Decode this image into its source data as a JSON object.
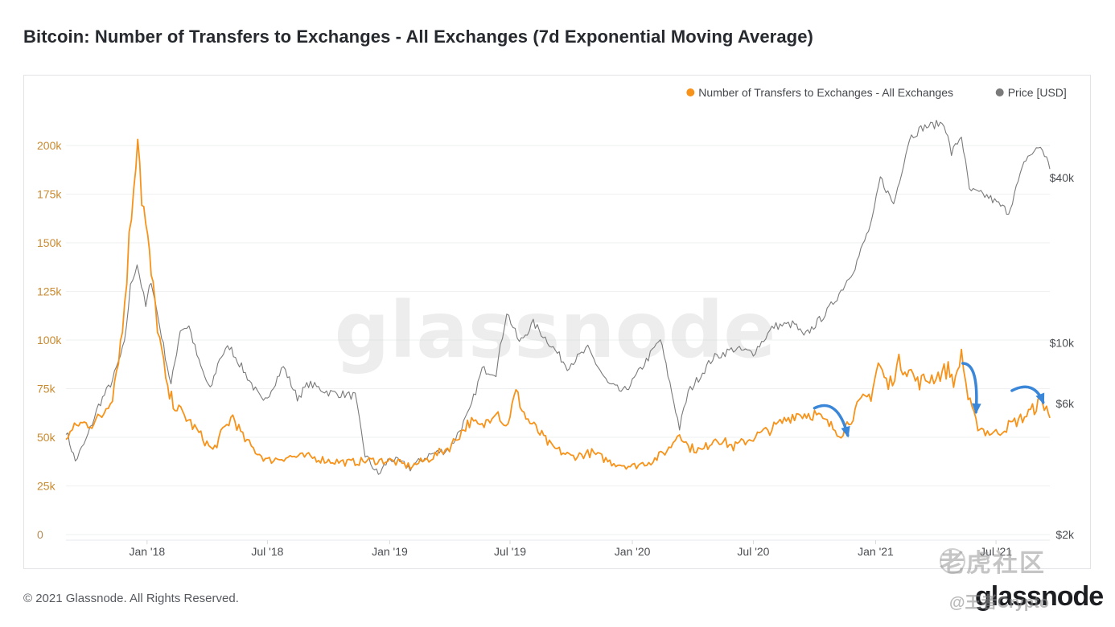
{
  "header": {
    "title": "Bitcoin: Number of Transfers to Exchanges - All Exchanges (7d Exponential Moving Average)"
  },
  "footer": {
    "copyright": "© 2021 Glassnode. All Rights Reserved.",
    "logo": "glassnode"
  },
  "overlay": {
    "tiger_watermark": "老虎社区",
    "tiger_handle": "@王者Crypto"
  },
  "chart_data": {
    "type": "line",
    "title": "Bitcoin: Number of Transfers to Exchanges - All Exchanges (7d Exponential Moving Average)",
    "watermark": "glassnode",
    "legend_position": "top-right",
    "grid": true,
    "x_range": [
      "2017-09-01",
      "2021-09-20"
    ],
    "x_ticks": [
      {
        "label": "Jan '18",
        "date": "2018-01-01"
      },
      {
        "label": "Jul '18",
        "date": "2018-07-01"
      },
      {
        "label": "Jan '19",
        "date": "2019-01-01"
      },
      {
        "label": "Jul '19",
        "date": "2019-07-01"
      },
      {
        "label": "Jan '20",
        "date": "2020-01-01"
      },
      {
        "label": "Jul '20",
        "date": "2020-07-01"
      },
      {
        "label": "Jan '21",
        "date": "2021-01-01"
      },
      {
        "label": "Jul '21",
        "date": "2021-07-01"
      }
    ],
    "y_left": {
      "scale": "linear",
      "range": [
        0,
        200000
      ],
      "ticks": [
        {
          "label": "0",
          "value": 0
        },
        {
          "label": "25k",
          "value": 25000
        },
        {
          "label": "50k",
          "value": 50000
        },
        {
          "label": "75k",
          "value": 75000
        },
        {
          "label": "100k",
          "value": 100000
        },
        {
          "label": "125k",
          "value": 125000
        },
        {
          "label": "150k",
          "value": 150000
        },
        {
          "label": "175k",
          "value": 175000
        },
        {
          "label": "200k",
          "value": 200000
        }
      ]
    },
    "y_right": {
      "scale": "log",
      "range": [
        2000,
        65000
      ],
      "ticks": [
        {
          "label": "$2k",
          "value": 2000
        },
        {
          "label": "$6k",
          "value": 6000
        },
        {
          "label": "$10k",
          "value": 10000
        },
        {
          "label": "$40k",
          "value": 40000
        }
      ]
    },
    "series": [
      {
        "name": "Number of Transfers to Exchanges - All Exchanges",
        "color": "#f7931a",
        "axis": "left",
        "points": [
          [
            "2017-09-01",
            50000
          ],
          [
            "2017-09-20",
            57000
          ],
          [
            "2017-10-10",
            57000
          ],
          [
            "2017-10-25",
            61000
          ],
          [
            "2017-11-10",
            72000
          ],
          [
            "2017-11-25",
            105000
          ],
          [
            "2017-12-05",
            150000
          ],
          [
            "2017-12-12",
            182000
          ],
          [
            "2017-12-18",
            210000
          ],
          [
            "2017-12-24",
            175000
          ],
          [
            "2018-01-02",
            150000
          ],
          [
            "2018-01-10",
            125000
          ],
          [
            "2018-01-20",
            100000
          ],
          [
            "2018-02-01",
            73000
          ],
          [
            "2018-02-15",
            65000
          ],
          [
            "2018-03-01",
            60000
          ],
          [
            "2018-03-20",
            52000
          ],
          [
            "2018-04-10",
            43000
          ],
          [
            "2018-04-25",
            53000
          ],
          [
            "2018-05-10",
            61000
          ],
          [
            "2018-05-25",
            50000
          ],
          [
            "2018-06-10",
            44000
          ],
          [
            "2018-07-01",
            38000
          ],
          [
            "2018-08-01",
            40000
          ],
          [
            "2018-09-01",
            40000
          ],
          [
            "2018-10-01",
            38000
          ],
          [
            "2018-11-01",
            37000
          ],
          [
            "2018-12-01",
            38000
          ],
          [
            "2019-01-01",
            38000
          ],
          [
            "2019-02-01",
            35000
          ],
          [
            "2019-03-01",
            39000
          ],
          [
            "2019-04-01",
            45000
          ],
          [
            "2019-05-01",
            58000
          ],
          [
            "2019-05-20",
            55000
          ],
          [
            "2019-06-10",
            65000
          ],
          [
            "2019-06-25",
            55000
          ],
          [
            "2019-07-10",
            73000
          ],
          [
            "2019-07-25",
            60000
          ],
          [
            "2019-08-15",
            52000
          ],
          [
            "2019-09-01",
            45000
          ],
          [
            "2019-10-01",
            40000
          ],
          [
            "2019-11-01",
            42000
          ],
          [
            "2019-12-01",
            37000
          ],
          [
            "2020-01-01",
            35000
          ],
          [
            "2020-02-01",
            38000
          ],
          [
            "2020-02-25",
            44000
          ],
          [
            "2020-03-12",
            53000
          ],
          [
            "2020-03-25",
            45000
          ],
          [
            "2020-04-15",
            43000
          ],
          [
            "2020-05-05",
            50000
          ],
          [
            "2020-06-01",
            45000
          ],
          [
            "2020-07-01",
            50000
          ],
          [
            "2020-08-01",
            55000
          ],
          [
            "2020-09-01",
            62000
          ],
          [
            "2020-10-01",
            62000
          ],
          [
            "2020-10-20",
            57000
          ],
          [
            "2020-11-10",
            52000
          ],
          [
            "2020-11-25",
            60000
          ],
          [
            "2020-12-10",
            68000
          ],
          [
            "2020-12-25",
            72000
          ],
          [
            "2021-01-05",
            88000
          ],
          [
            "2021-01-20",
            76000
          ],
          [
            "2021-02-05",
            88000
          ],
          [
            "2021-02-20",
            85000
          ],
          [
            "2021-03-05",
            78000
          ],
          [
            "2021-03-20",
            80000
          ],
          [
            "2021-04-05",
            82000
          ],
          [
            "2021-04-20",
            85000
          ],
          [
            "2021-05-01",
            78000
          ],
          [
            "2021-05-10",
            94000
          ],
          [
            "2021-05-20",
            70000
          ],
          [
            "2021-06-01",
            57000
          ],
          [
            "2021-06-15",
            53000
          ],
          [
            "2021-07-01",
            52000
          ],
          [
            "2021-07-20",
            56000
          ],
          [
            "2021-08-10",
            60000
          ],
          [
            "2021-08-25",
            64000
          ],
          [
            "2021-09-05",
            68000
          ],
          [
            "2021-09-15",
            66000
          ],
          [
            "2021-09-20",
            60000
          ]
        ]
      },
      {
        "name": "Price [USD]",
        "color": "#7a7a7a",
        "axis": "right",
        "points": [
          [
            "2017-09-01",
            4800
          ],
          [
            "2017-09-15",
            3700
          ],
          [
            "2017-10-01",
            4400
          ],
          [
            "2017-10-20",
            5900
          ],
          [
            "2017-11-10",
            7300
          ],
          [
            "2017-11-28",
            9900
          ],
          [
            "2017-12-07",
            16000
          ],
          [
            "2017-12-17",
            19500
          ],
          [
            "2017-12-30",
            13500
          ],
          [
            "2018-01-07",
            17000
          ],
          [
            "2018-01-20",
            11500
          ],
          [
            "2018-02-06",
            7000
          ],
          [
            "2018-02-20",
            11200
          ],
          [
            "2018-03-05",
            11500
          ],
          [
            "2018-03-20",
            8500
          ],
          [
            "2018-04-06",
            6700
          ],
          [
            "2018-04-20",
            8800
          ],
          [
            "2018-05-05",
            9700
          ],
          [
            "2018-06-01",
            7500
          ],
          [
            "2018-06-25",
            6000
          ],
          [
            "2018-07-25",
            8200
          ],
          [
            "2018-08-15",
            6300
          ],
          [
            "2018-09-01",
            7100
          ],
          [
            "2018-10-01",
            6600
          ],
          [
            "2018-11-10",
            6400
          ],
          [
            "2018-11-25",
            3900
          ],
          [
            "2018-12-15",
            3300
          ],
          [
            "2019-01-01",
            3800
          ],
          [
            "2019-02-01",
            3500
          ],
          [
            "2019-03-01",
            3900
          ],
          [
            "2019-04-01",
            4100
          ],
          [
            "2019-05-01",
            5600
          ],
          [
            "2019-05-20",
            8000
          ],
          [
            "2019-06-10",
            7800
          ],
          [
            "2019-06-26",
            13000
          ],
          [
            "2019-07-15",
            10000
          ],
          [
            "2019-08-05",
            11800
          ],
          [
            "2019-09-01",
            9800
          ],
          [
            "2019-09-25",
            8200
          ],
          [
            "2019-10-26",
            9500
          ],
          [
            "2019-11-25",
            7100
          ],
          [
            "2019-12-18",
            6600
          ],
          [
            "2020-01-01",
            7200
          ],
          [
            "2020-02-12",
            10300
          ],
          [
            "2020-03-12",
            4900
          ],
          [
            "2020-03-25",
            6600
          ],
          [
            "2020-05-01",
            8800
          ],
          [
            "2020-06-01",
            9500
          ],
          [
            "2020-07-01",
            9200
          ],
          [
            "2020-08-01",
            11500
          ],
          [
            "2020-09-01",
            11700
          ],
          [
            "2020-09-15",
            10500
          ],
          [
            "2020-10-20",
            13000
          ],
          [
            "2020-11-10",
            15500
          ],
          [
            "2020-12-01",
            19000
          ],
          [
            "2020-12-27",
            28000
          ],
          [
            "2021-01-08",
            40000
          ],
          [
            "2021-01-28",
            32000
          ],
          [
            "2021-02-21",
            56000
          ],
          [
            "2021-03-13",
            61000
          ],
          [
            "2021-04-14",
            63500
          ],
          [
            "2021-04-25",
            49000
          ],
          [
            "2021-05-10",
            57000
          ],
          [
            "2021-05-22",
            36000
          ],
          [
            "2021-06-20",
            34000
          ],
          [
            "2021-07-20",
            30000
          ],
          [
            "2021-08-15",
            47000
          ],
          [
            "2021-09-06",
            52000
          ],
          [
            "2021-09-15",
            47000
          ],
          [
            "2021-09-20",
            43000
          ]
        ]
      }
    ],
    "annotations": [
      {
        "type": "arrow",
        "color": "#3a86d8",
        "from": [
          "2020-10-01",
          65000
        ],
        "to": [
          "2020-11-20",
          51000
        ]
      },
      {
        "type": "arrow",
        "color": "#3a86d8",
        "from": [
          "2021-05-12",
          88000
        ],
        "to": [
          "2021-06-01",
          63000
        ]
      },
      {
        "type": "arrow",
        "color": "#3a86d8",
        "from": [
          "2021-07-25",
          74000
        ],
        "to": [
          "2021-09-10",
          68000
        ]
      }
    ]
  }
}
